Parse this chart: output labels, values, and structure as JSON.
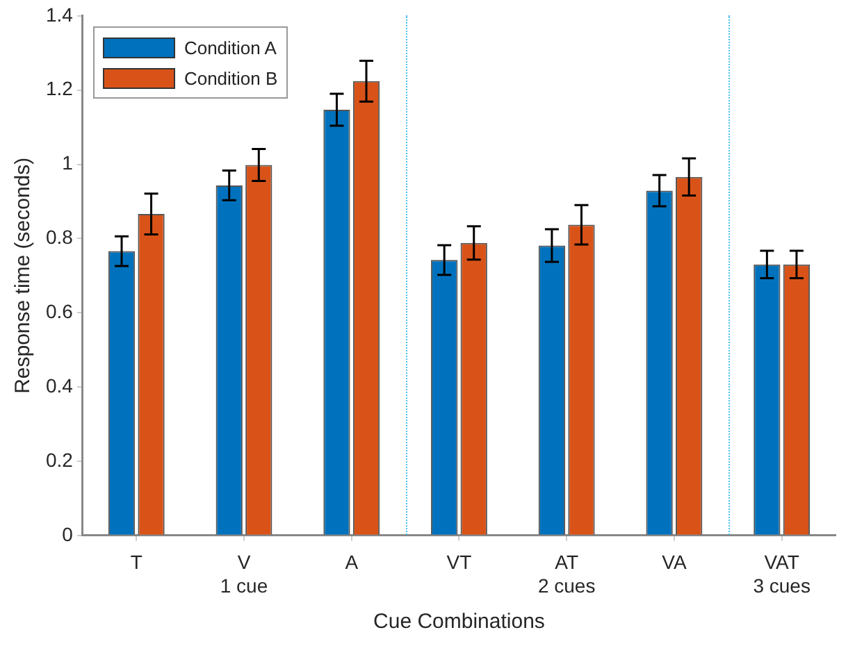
{
  "chart_data": {
    "type": "bar",
    "xlabel": "Cue Combinations",
    "ylabel": "Response time (seconds)",
    "categories": [
      "T",
      "V\n1 cue",
      "A",
      "VT",
      "AT\n2 cues",
      "VA",
      "VAT\n3 cues"
    ],
    "ylim": [
      0,
      1.4
    ],
    "yticks": [
      0,
      0.2,
      0.4,
      0.6,
      0.8,
      1,
      1.2,
      1.4
    ],
    "series": [
      {
        "name": "Condition A",
        "color": "#0072bd",
        "values": [
          0.766,
          0.943,
          1.147,
          0.742,
          0.781,
          0.929,
          0.73
        ],
        "errors": [
          0.04,
          0.04,
          0.043,
          0.04,
          0.044,
          0.042,
          0.037
        ]
      },
      {
        "name": "Condition B",
        "color": "#d95319",
        "values": [
          0.866,
          0.998,
          1.224,
          0.788,
          0.837,
          0.966,
          0.73
        ],
        "errors": [
          0.055,
          0.043,
          0.055,
          0.045,
          0.053,
          0.05,
          0.037
        ]
      }
    ],
    "grid": false,
    "legend": "top left"
  }
}
